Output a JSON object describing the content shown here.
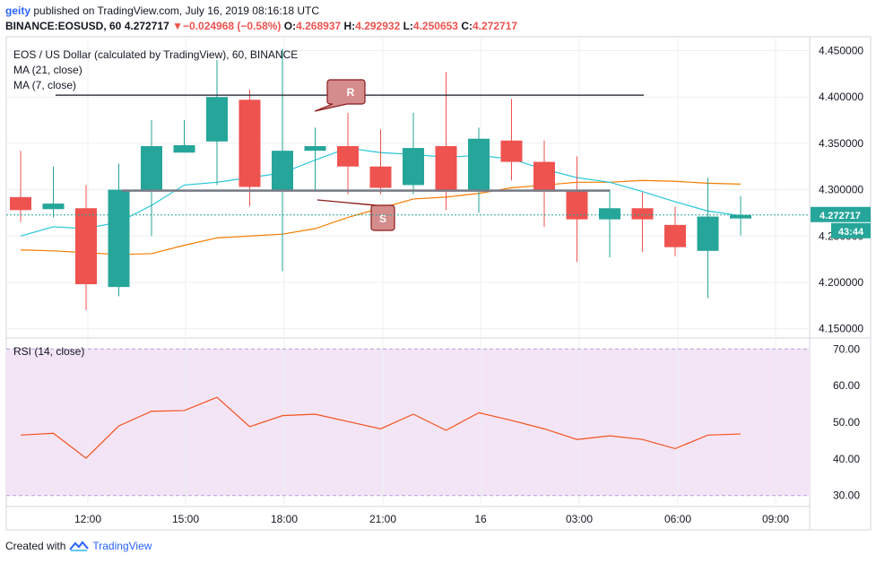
{
  "header": {
    "author": "geity",
    "published_text": "published on TradingView.com, July 16, 2019 08:16:18 UTC",
    "symbol_line": "BINANCE:EOSUSD, 60",
    "last": "4.272717",
    "change_arrow": "▼",
    "change": "−0.024968 (−0.58%)",
    "o_label": "O:",
    "o_val": "4.268937",
    "h_label": "H:",
    "h_val": "4.292932",
    "l_label": "L:",
    "l_val": "4.250653",
    "c_label": "C:",
    "c_val": "4.272717"
  },
  "legend": {
    "title": "EOS / US Dollar (calculated by TradingView), 60, BINANCE",
    "ma21": "MA (21, close)",
    "ma7": "MA (7, close)",
    "rsi": "RSI (14, close)"
  },
  "price_tag": "4.272717",
  "countdown_tag": "43:44",
  "annotations": {
    "resistance": "R",
    "support": "S"
  },
  "footer": {
    "created_with": "Created with",
    "brand": "TradingView"
  },
  "colors": {
    "up": "#26a69a",
    "down": "#ef5350",
    "ma21": "#f57c00",
    "ma7": "#26c6da",
    "rsi": "#f4511e",
    "rsi_band": "#f3e5f5",
    "grid": "#eceff1",
    "callout": "#d58c8c"
  },
  "chart_data": [
    {
      "type": "candlestick",
      "title": "EOS / US Dollar (calculated by TradingView), 60, BINANCE",
      "x_ticks": [
        "12:00",
        "15:00",
        "18:00",
        "21:00",
        "16",
        "03:00",
        "06:00",
        "09:00"
      ],
      "y_ticks": [
        "4.150000",
        "4.200000",
        "4.250000",
        "4.300000",
        "4.350000",
        "4.400000",
        "4.450000"
      ],
      "ylim": [
        4.14,
        4.465
      ],
      "last_price": 4.272717,
      "candles": [
        {
          "o": 4.292,
          "h": 4.342,
          "l": 4.265,
          "c": 4.278
        },
        {
          "o": 4.279,
          "h": 4.325,
          "l": 4.27,
          "c": 4.285
        },
        {
          "o": 4.28,
          "h": 4.305,
          "l": 4.17,
          "c": 4.198
        },
        {
          "o": 4.195,
          "h": 4.328,
          "l": 4.185,
          "c": 4.3
        },
        {
          "o": 4.3,
          "h": 4.375,
          "l": 4.25,
          "c": 4.347
        },
        {
          "o": 4.34,
          "h": 4.375,
          "l": 4.34,
          "c": 4.348
        },
        {
          "o": 4.352,
          "h": 4.44,
          "l": 4.305,
          "c": 4.4
        },
        {
          "o": 4.397,
          "h": 4.408,
          "l": 4.282,
          "c": 4.303
        },
        {
          "o": 4.3,
          "h": 4.452,
          "l": 4.212,
          "c": 4.342
        },
        {
          "o": 4.342,
          "h": 4.367,
          "l": 4.3,
          "c": 4.347
        },
        {
          "o": 4.347,
          "h": 4.383,
          "l": 4.295,
          "c": 4.325
        },
        {
          "o": 4.325,
          "h": 4.365,
          "l": 4.295,
          "c": 4.302
        },
        {
          "o": 4.305,
          "h": 4.383,
          "l": 4.295,
          "c": 4.345
        },
        {
          "o": 4.347,
          "h": 4.427,
          "l": 4.278,
          "c": 4.298
        },
        {
          "o": 4.298,
          "h": 4.367,
          "l": 4.275,
          "c": 4.355
        },
        {
          "o": 4.353,
          "h": 4.398,
          "l": 4.31,
          "c": 4.33
        },
        {
          "o": 4.33,
          "h": 4.353,
          "l": 4.26,
          "c": 4.298
        },
        {
          "o": 4.3,
          "h": 4.336,
          "l": 4.222,
          "c": 4.268
        },
        {
          "o": 4.268,
          "h": 4.3,
          "l": 4.227,
          "c": 4.28
        },
        {
          "o": 4.28,
          "h": 4.297,
          "l": 4.233,
          "c": 4.268
        },
        {
          "o": 4.262,
          "h": 4.282,
          "l": 4.228,
          "c": 4.238
        },
        {
          "o": 4.234,
          "h": 4.313,
          "l": 4.183,
          "c": 4.271
        },
        {
          "o": 4.268937,
          "h": 4.292932,
          "l": 4.250653,
          "c": 4.272717
        }
      ],
      "ma21": [
        null,
        null,
        null,
        null,
        null,
        null,
        null,
        null,
        null,
        null,
        null,
        null,
        null,
        null,
        null,
        null,
        null,
        null,
        null,
        null,
        null,
        null,
        null
      ],
      "ma21_points": [
        4.235,
        4.234,
        4.232,
        4.23,
        4.231,
        4.24,
        4.248,
        4.25,
        4.252,
        4.258,
        4.27,
        4.28,
        4.29,
        4.292,
        4.296,
        4.302,
        4.305,
        4.308,
        4.308,
        4.31,
        4.309,
        4.307,
        4.306
      ],
      "ma7_points": [
        4.25,
        4.26,
        4.258,
        4.265,
        4.283,
        4.305,
        4.308,
        4.313,
        4.318,
        4.332,
        4.345,
        4.34,
        4.338,
        4.335,
        4.337,
        4.333,
        4.322,
        4.313,
        4.308,
        4.298,
        4.287,
        4.277,
        4.272
      ],
      "resistance": 4.402,
      "support": 4.299
    },
    {
      "type": "line",
      "title": "RSI (14, close)",
      "y_ticks": [
        "30.00",
        "40.00",
        "50.00",
        "60.00",
        "70.00"
      ],
      "ylim": [
        27,
        73
      ],
      "band": [
        30,
        70
      ],
      "values": [
        46.5,
        47,
        40.2,
        49,
        53,
        53.2,
        56.8,
        48.8,
        51.8,
        52.2,
        50.2,
        48.2,
        52.2,
        47.8,
        52.6,
        50.5,
        48.2,
        45.3,
        46.3,
        45.3,
        42.8,
        46.5,
        46.8
      ]
    }
  ]
}
